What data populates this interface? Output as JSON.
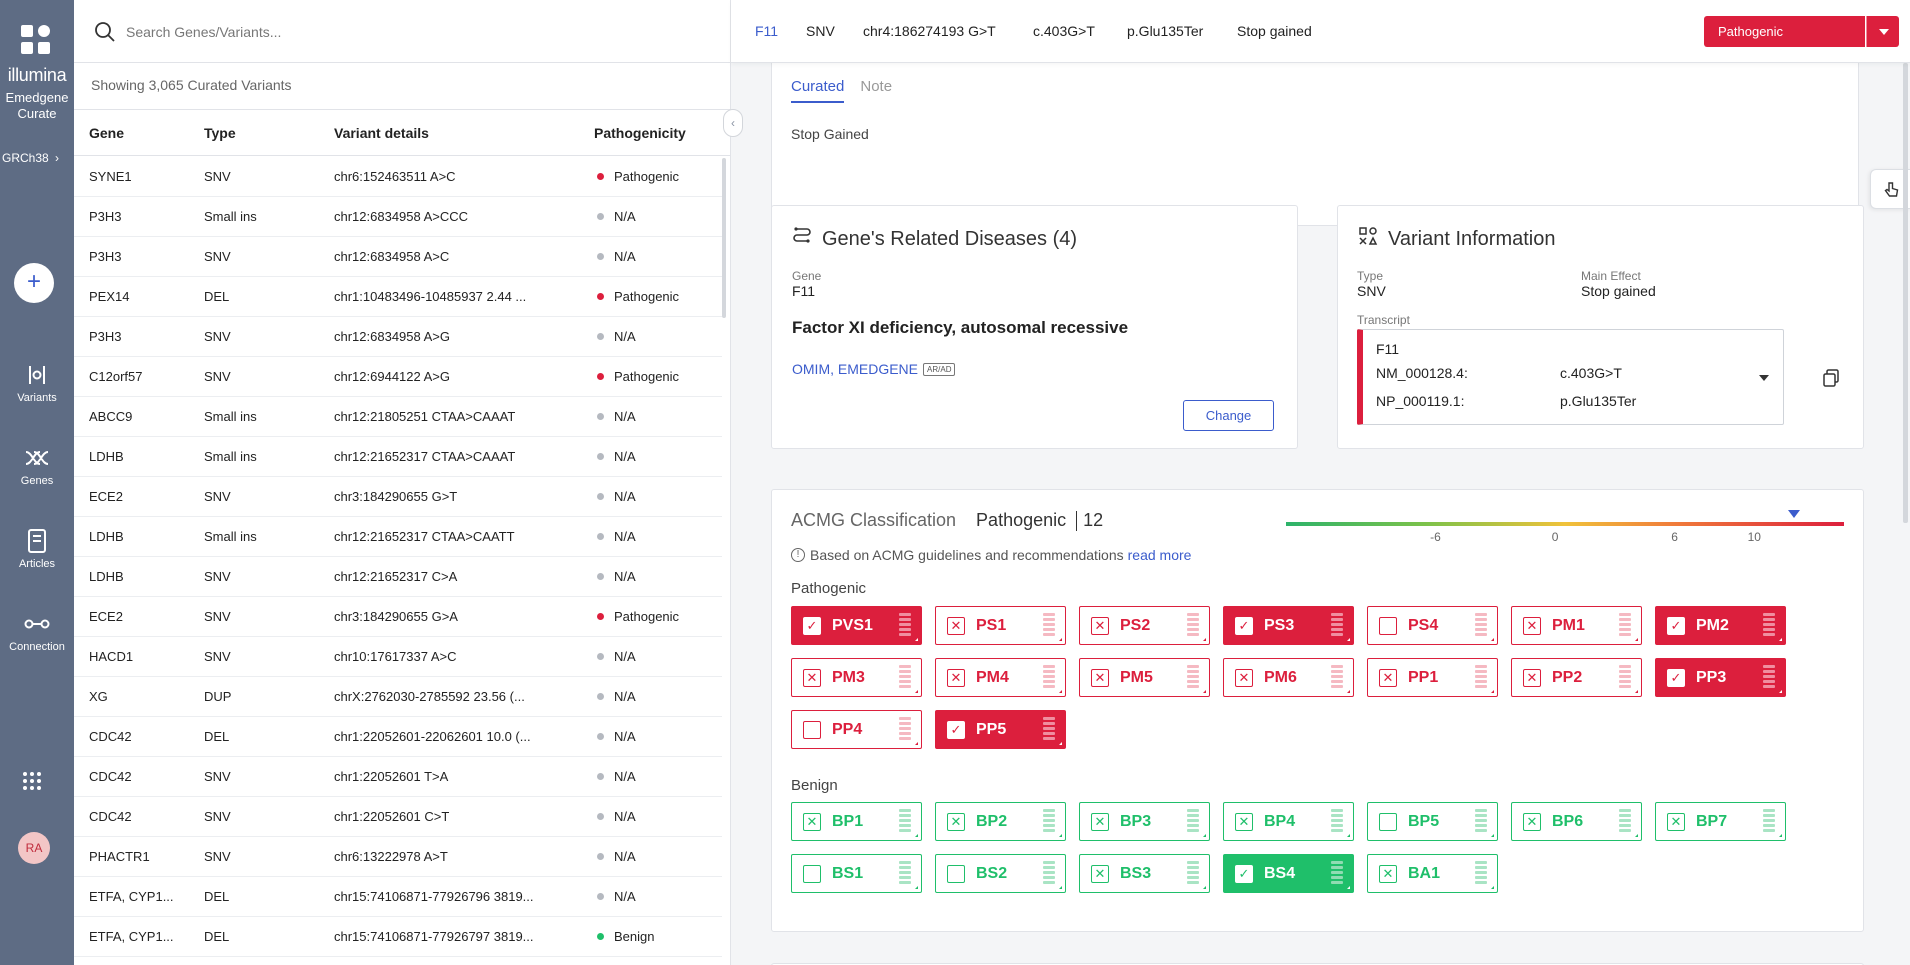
{
  "sidebar": {
    "brand": "illumina",
    "product_line1": "Emedgene",
    "product_line2": "Curate",
    "genome": "GRCh38",
    "add_label": "+",
    "nav": [
      {
        "label": "Variants",
        "icon": "variants-icon"
      },
      {
        "label": "Genes",
        "icon": "genes-icon"
      },
      {
        "label": "Articles",
        "icon": "articles-icon"
      },
      {
        "label": "Connection",
        "icon": "connection-icon"
      }
    ],
    "avatar_initials": "RA"
  },
  "search": {
    "placeholder": "Search Genes/Variants..."
  },
  "list": {
    "showing_text": "Showing 3,065 Curated Variants",
    "columns": {
      "gene": "Gene",
      "type": "Type",
      "details": "Variant details",
      "pathogenicity": "Pathogenicity"
    },
    "rows": [
      {
        "gene": "SYNE1",
        "type": "SNV",
        "details": "chr6:152463511 A>C",
        "path": "Pathogenic",
        "color": "#dc1f3d"
      },
      {
        "gene": "P3H3",
        "type": "Small ins",
        "details": "chr12:6834958 A>CCC",
        "path": "N/A",
        "color": "#b5b9c0"
      },
      {
        "gene": "P3H3",
        "type": "SNV",
        "details": "chr12:6834958 A>C",
        "path": "N/A",
        "color": "#b5b9c0"
      },
      {
        "gene": "PEX14",
        "type": "DEL",
        "details": "chr1:10483496-10485937 2.44 ...",
        "path": "Pathogenic",
        "color": "#dc1f3d"
      },
      {
        "gene": "P3H3",
        "type": "SNV",
        "details": "chr12:6834958 A>G",
        "path": "N/A",
        "color": "#b5b9c0"
      },
      {
        "gene": "C12orf57",
        "type": "SNV",
        "details": "chr12:6944122 A>G",
        "path": "Pathogenic",
        "color": "#dc1f3d"
      },
      {
        "gene": "ABCC9",
        "type": "Small ins",
        "details": "chr12:21805251 CTAA>CAAAT",
        "path": "N/A",
        "color": "#b5b9c0"
      },
      {
        "gene": "LDHB",
        "type": "Small ins",
        "details": "chr12:21652317 CTAA>CAAAT",
        "path": "N/A",
        "color": "#b5b9c0"
      },
      {
        "gene": "ECE2",
        "type": "SNV",
        "details": "chr3:184290655 G>T",
        "path": "N/A",
        "color": "#b5b9c0"
      },
      {
        "gene": "LDHB",
        "type": "Small ins",
        "details": "chr12:21652317 CTAA>CAATT",
        "path": "N/A",
        "color": "#b5b9c0"
      },
      {
        "gene": "LDHB",
        "type": "SNV",
        "details": "chr12:21652317 C>A",
        "path": "N/A",
        "color": "#b5b9c0"
      },
      {
        "gene": "ECE2",
        "type": "SNV",
        "details": "chr3:184290655 G>A",
        "path": "Pathogenic",
        "color": "#dc1f3d"
      },
      {
        "gene": "HACD1",
        "type": "SNV",
        "details": "chr10:17617337 A>C",
        "path": "N/A",
        "color": "#b5b9c0"
      },
      {
        "gene": "XG",
        "type": "DUP",
        "details": "chrX:2762030-2785592 23.56 (...",
        "path": "N/A",
        "color": "#b5b9c0"
      },
      {
        "gene": "CDC42",
        "type": "DEL",
        "details": "chr1:22052601-22062601 10.0 (...",
        "path": "N/A",
        "color": "#b5b9c0"
      },
      {
        "gene": "CDC42",
        "type": "SNV",
        "details": "chr1:22052601 T>A",
        "path": "N/A",
        "color": "#b5b9c0"
      },
      {
        "gene": "CDC42",
        "type": "SNV",
        "details": "chr1:22052601 C>T",
        "path": "N/A",
        "color": "#b5b9c0"
      },
      {
        "gene": "PHACTR1",
        "type": "SNV",
        "details": "chr6:13222978 A>T",
        "path": "N/A",
        "color": "#b5b9c0"
      },
      {
        "gene": "ETFA, CYP1...",
        "type": "DEL",
        "details": "chr15:74106871-77926796 3819...",
        "path": "N/A",
        "color": "#b5b9c0"
      },
      {
        "gene": "ETFA, CYP1...",
        "type": "DEL",
        "details": "chr15:74106871-77926797 3819...",
        "path": "Benign",
        "color": "#1fbf6a"
      }
    ]
  },
  "header": {
    "gene": "F11",
    "type": "SNV",
    "position": "chr4:186274193 G>T",
    "cdna": "c.403G>T",
    "protein": "p.Glu135Ter",
    "effect": "Stop gained",
    "classification": "Pathogenic"
  },
  "curated_card": {
    "tabs": [
      "Curated",
      "Note"
    ],
    "text": "Stop Gained"
  },
  "diseases_card": {
    "title": "Gene's Related Diseases (4)",
    "gene_label": "Gene",
    "gene_value": "F11",
    "disease": "Factor XI deficiency, autosomal recessive",
    "sources": "OMIM, EMEDGENE",
    "inheritance_badge": "AR/AD",
    "change_label": "Change"
  },
  "variant_card": {
    "title": "Variant Information",
    "type_label": "Type",
    "type_value": "SNV",
    "effect_label": "Main Effect",
    "effect_value": "Stop gained",
    "transcript_label": "Transcript",
    "transcript_gene": "F11",
    "nm_id": "NM_000128.4:",
    "nm_change": "c.403G>T",
    "np_id": "NP_000119.1:",
    "np_change": "p.Glu135Ter"
  },
  "acmg": {
    "title": "ACMG Classification",
    "classification": "Pathogenic",
    "score": "12",
    "note": "Based on ACMG guidelines and recommendations",
    "read_more": "read more",
    "scale_ticks": [
      "-6",
      "0",
      "6",
      "10"
    ],
    "scale_marker_value": 12,
    "pathogenic_label": "Pathogenic",
    "benign_label": "Benign",
    "pathogenic": [
      {
        "code": "PVS1",
        "state": "checked"
      },
      {
        "code": "PS1",
        "state": "x"
      },
      {
        "code": "PS2",
        "state": "x"
      },
      {
        "code": "PS3",
        "state": "checked"
      },
      {
        "code": "PS4",
        "state": "empty"
      },
      {
        "code": "PM1",
        "state": "x"
      },
      {
        "code": "PM2",
        "state": "checked"
      },
      {
        "code": "PM3",
        "state": "x"
      },
      {
        "code": "PM4",
        "state": "x"
      },
      {
        "code": "PM5",
        "state": "x"
      },
      {
        "code": "PM6",
        "state": "x"
      },
      {
        "code": "PP1",
        "state": "x"
      },
      {
        "code": "PP2",
        "state": "x"
      },
      {
        "code": "PP3",
        "state": "checked"
      },
      {
        "code": "PP4",
        "state": "empty"
      },
      {
        "code": "PP5",
        "state": "checked"
      }
    ],
    "benign": [
      {
        "code": "BP1",
        "state": "x"
      },
      {
        "code": "BP2",
        "state": "x"
      },
      {
        "code": "BP3",
        "state": "x"
      },
      {
        "code": "BP4",
        "state": "x"
      },
      {
        "code": "BP5",
        "state": "empty"
      },
      {
        "code": "BP6",
        "state": "x"
      },
      {
        "code": "BP7",
        "state": "x"
      },
      {
        "code": "BS1",
        "state": "empty"
      },
      {
        "code": "BS2",
        "state": "empty"
      },
      {
        "code": "BS3",
        "state": "x"
      },
      {
        "code": "BS4",
        "state": "checked"
      },
      {
        "code": "BA1",
        "state": "x"
      }
    ]
  },
  "colors": {
    "pathogenic": "#dc1f3d",
    "benign": "#1fbf6a",
    "accent": "#3b5ccc",
    "sidebar": "#5e6c84"
  }
}
